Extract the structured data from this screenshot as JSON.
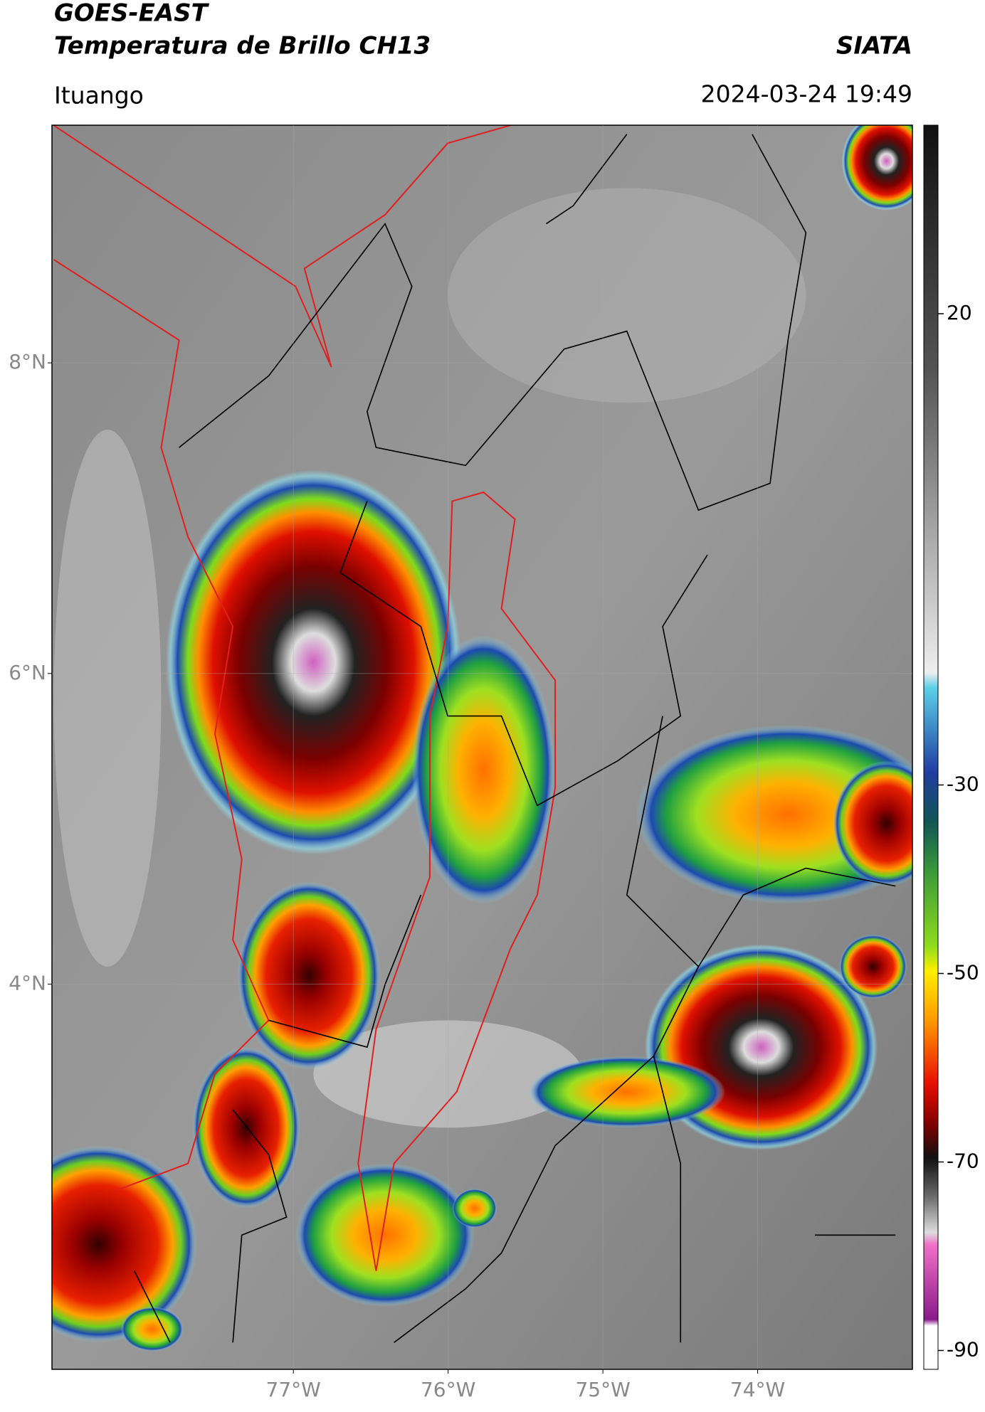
{
  "header": {
    "title_line1": "GOES-EAST",
    "title_line2": "Temperatura de Brillo CH13",
    "source": "SIATA",
    "region": "Ituango",
    "datetime": "2024-03-24 19:49"
  },
  "map": {
    "lon_range": [
      -78.56,
      -73.0
    ],
    "lat_range": [
      1.52,
      9.53
    ],
    "lat_ticks": [
      {
        "value": 8,
        "label": "8°N"
      },
      {
        "value": 6,
        "label": "6°N"
      },
      {
        "value": 4,
        "label": "4°N"
      }
    ],
    "lon_ticks": [
      {
        "value": -77,
        "label": "77°W"
      },
      {
        "value": -76,
        "label": "76°W"
      },
      {
        "value": -75,
        "label": "75°W"
      },
      {
        "value": -74,
        "label": "74°W"
      }
    ]
  },
  "colorbar": {
    "range": [
      -92,
      40
    ],
    "ticks": [
      20,
      -30,
      -50,
      -70,
      -90
    ]
  }
}
